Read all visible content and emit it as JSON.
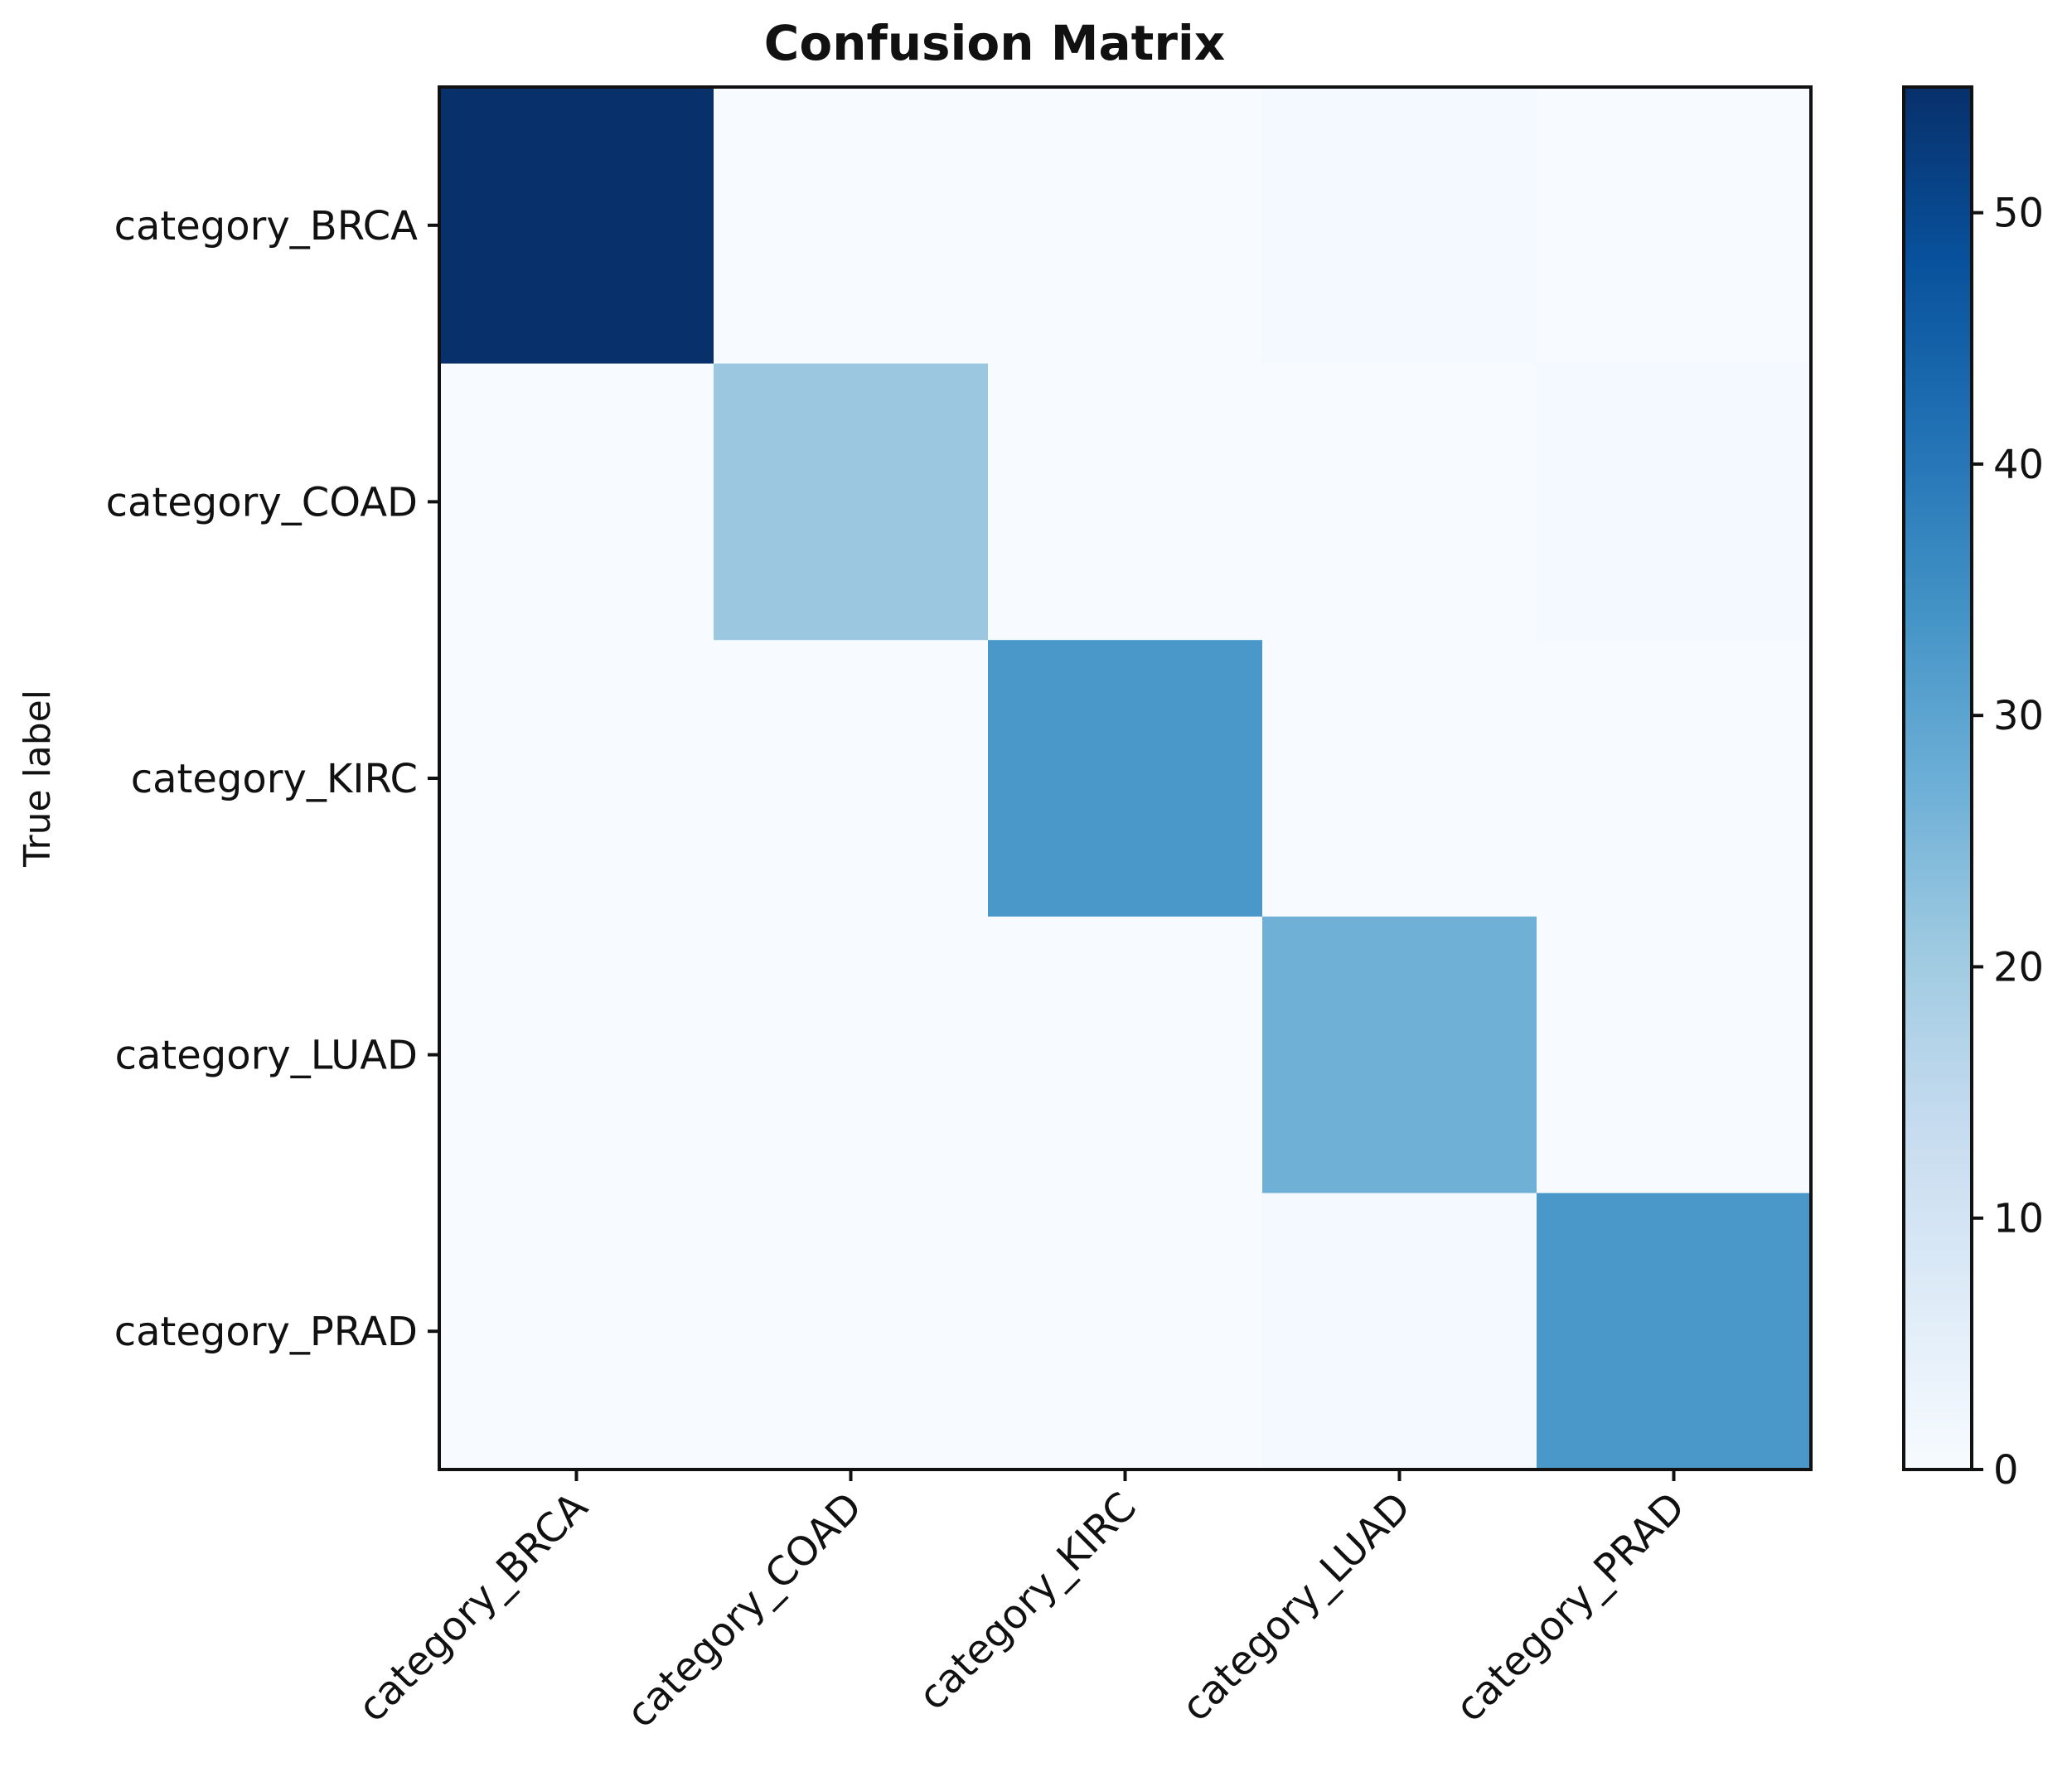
{
  "chart_data": {
    "type": "heatmap",
    "title": "Confusion Matrix",
    "ylabel": "True label",
    "xlabel": "",
    "row_labels": [
      "category_BRCA",
      "category_COAD",
      "category_KIRC",
      "category_LUAD",
      "category_PRAD"
    ],
    "col_labels": [
      "category_BRCA",
      "category_COAD",
      "category_KIRC",
      "category_LUAD",
      "category_PRAD"
    ],
    "matrix": [
      [
        55,
        0,
        0,
        1,
        0
      ],
      [
        0,
        21,
        0,
        0,
        1
      ],
      [
        0,
        0,
        33,
        0,
        0
      ],
      [
        0,
        0,
        0,
        27,
        0
      ],
      [
        0,
        0,
        0,
        1,
        33
      ]
    ],
    "colorbar": {
      "range": [
        0,
        55
      ],
      "ticks": [
        0,
        10,
        20,
        30,
        40,
        50
      ],
      "colormap": "Blues"
    },
    "grid": false
  }
}
